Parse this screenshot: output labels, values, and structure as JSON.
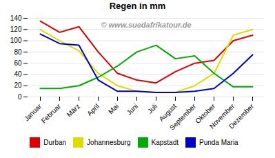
{
  "chart_data": {
    "type": "line",
    "title": "Regen in mm",
    "annotations": [
      "© www.suedafrikatour.de"
    ],
    "categories": [
      "Januar",
      "Februar",
      "März",
      "April",
      "Mai",
      "Juni",
      "Juli",
      "August",
      "September",
      "Oktober",
      "November",
      "Dezember"
    ],
    "series": [
      {
        "name": "Durban",
        "color": "#dd0000",
        "values": [
          135,
          115,
          125,
          80,
          42,
          30,
          25,
          45,
          60,
          65,
          100,
          110
        ]
      },
      {
        "name": "Johannesburg",
        "color": "#dddd00",
        "values": [
          120,
          100,
          82,
          42,
          20,
          10,
          8,
          8,
          20,
          42,
          110,
          120
        ]
      },
      {
        "name": "Kapstadt",
        "color": "#00aa00",
        "values": [
          15,
          15,
          20,
          35,
          55,
          80,
          92,
          68,
          73,
          42,
          18,
          18
        ]
      },
      {
        "name": "Punda Maria",
        "color": "#0000cc",
        "values": [
          112,
          95,
          92,
          30,
          10,
          10,
          8,
          8,
          10,
          15,
          42,
          75
        ]
      }
    ],
    "ylim": [
      0,
      140
    ],
    "yticks": [
      0,
      20,
      40,
      60,
      80,
      100,
      120,
      140
    ],
    "grid": true,
    "legend": "bottom"
  }
}
